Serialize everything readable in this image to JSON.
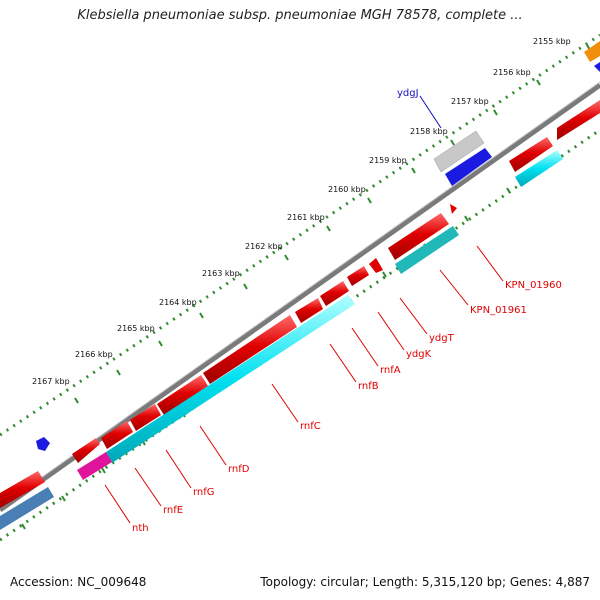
{
  "title": "Klebsiella pneumoniae subsp. pneumoniae MGH 78578, complete ...",
  "footer": {
    "accession": "Accession: NC_009648",
    "summary": "Topology: circular; Length: 5,315,120 bp; Genes: 4,887"
  },
  "ticks": [
    "2155 kbp",
    "2156 kbp",
    "2157 kbp",
    "2158 kbp",
    "2159 kbp",
    "2160 kbp",
    "2161 kbp",
    "2162 kbp",
    "2163 kbp",
    "2164 kbp",
    "2165 kbp",
    "2166 kbp",
    "2167 kbp"
  ],
  "gene_labels": [
    "ydgJ",
    "KPN_01960",
    "KPN_01961",
    "ydgT",
    "ydgK",
    "rnfA",
    "rnfB",
    "rnfC",
    "rnfD",
    "rnfG",
    "rnfE",
    "nth"
  ],
  "colors": {
    "cds": "#e00000",
    "backbone": "#7a7a7a",
    "tick_dots": "#2e8b2e",
    "label_line": "#e00000",
    "ydgJ_label": "#1010c0",
    "cyan": "#00e0f0",
    "teal": "#20b8b8",
    "magenta": "#e0149a",
    "blue": "#1a1ae0",
    "steel": "#4a7fb5",
    "gray_feature": "#c8c8c8",
    "orange": "#f0900a"
  }
}
